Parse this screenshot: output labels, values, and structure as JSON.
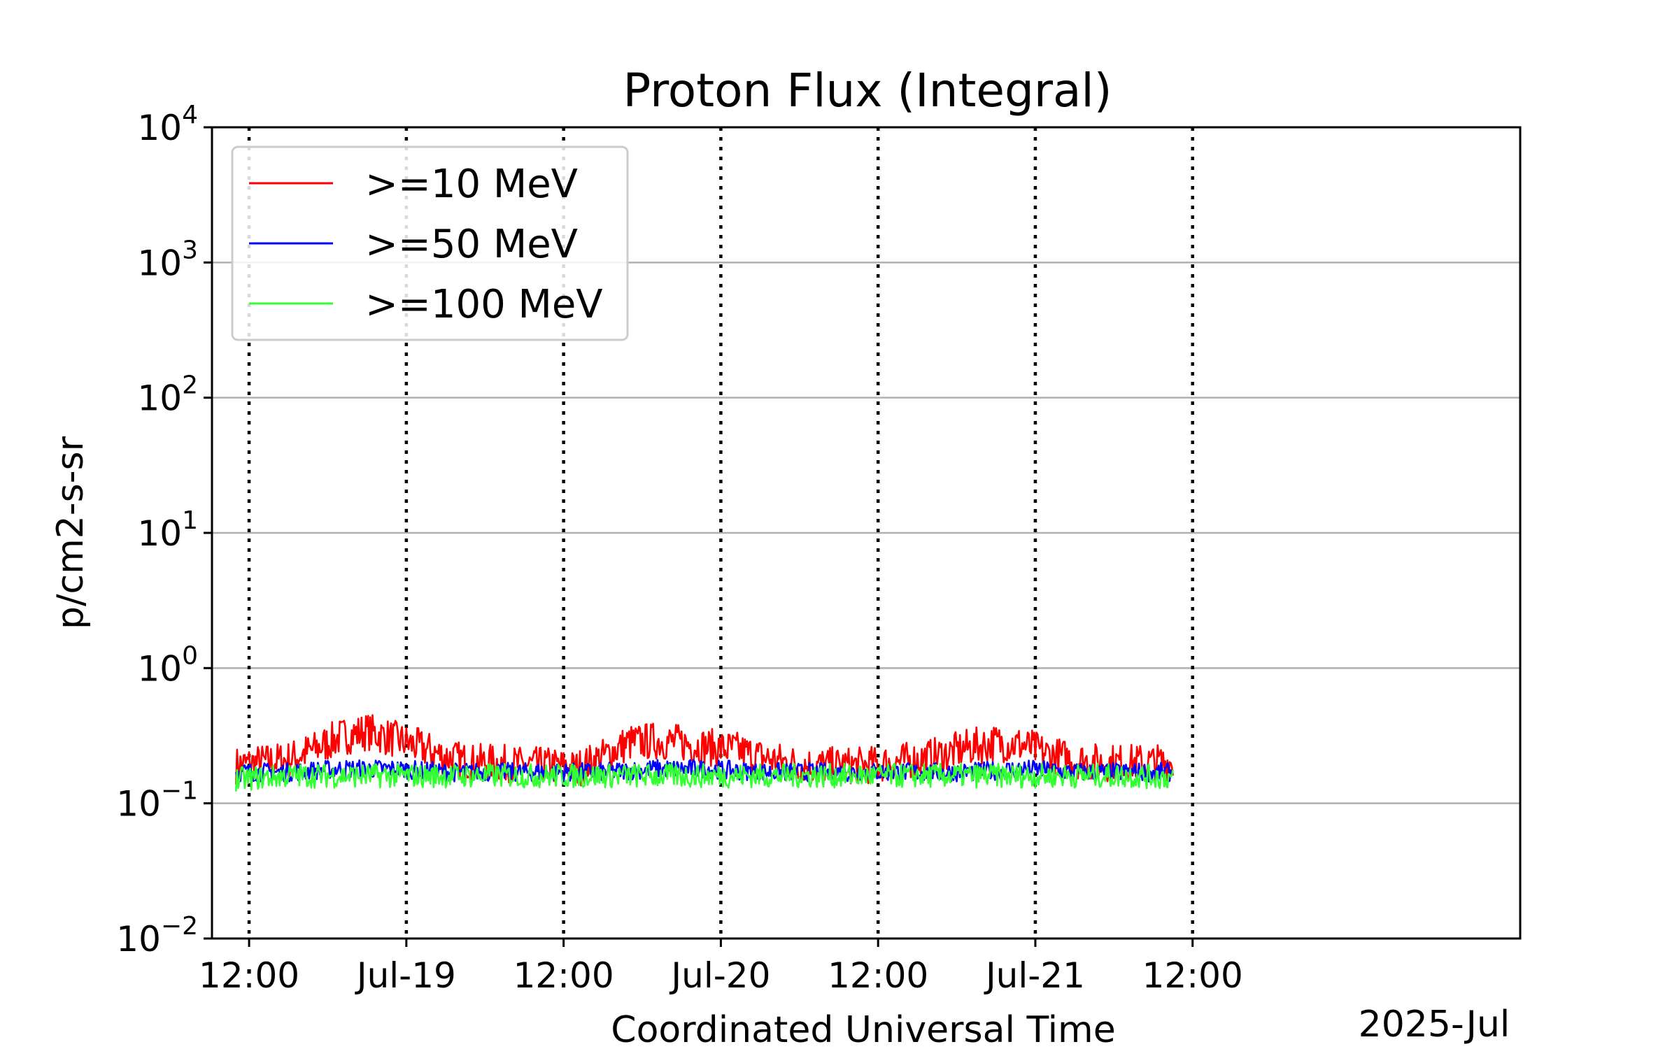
{
  "chart_data": {
    "type": "line",
    "title": "Proton Flux (Integral)",
    "xlabel": "Coordinated Universal Time",
    "ylabel": "p/cm2-s-sr",
    "x_offset_label": "2025-Jul",
    "yscale": "log",
    "ylim": [
      0.01,
      10000
    ],
    "xlim": [
      "2025-07-18 09:10",
      "2025-07-22 13:00"
    ],
    "grid": "horizontal solid gray at decades; vertical dotted black at x ticks",
    "legend_position": "top-left",
    "x_ticks": [
      {
        "t": "2025-07-18 12:00",
        "label": "12:00"
      },
      {
        "t": "2025-07-19 00:00",
        "label": "Jul-19"
      },
      {
        "t": "2025-07-19 12:00",
        "label": "12:00"
      },
      {
        "t": "2025-07-20 00:00",
        "label": "Jul-20"
      },
      {
        "t": "2025-07-20 12:00",
        "label": "12:00"
      },
      {
        "t": "2025-07-21 00:00",
        "label": "Jul-21"
      },
      {
        "t": "2025-07-21 12:00",
        "label": "12:00"
      }
    ],
    "y_ticks": [
      {
        "value": 0.01,
        "base": "10",
        "exp": "−2"
      },
      {
        "value": 0.1,
        "base": "10",
        "exp": "−1"
      },
      {
        "value": 1,
        "base": "10",
        "exp": "0"
      },
      {
        "value": 10,
        "base": "10",
        "exp": "1"
      },
      {
        "value": 100,
        "base": "10",
        "exp": "2"
      },
      {
        "value": 1000,
        "base": "10",
        "exp": "3"
      },
      {
        "value": 10000,
        "base": "10",
        "exp": "4"
      }
    ],
    "series": [
      {
        "name": ">=10 MeV",
        "color": "#ff0000",
        "points": [
          [
            "2025-07-18 11:00",
            0.19
          ],
          [
            "2025-07-18 13:00",
            0.2
          ],
          [
            "2025-07-18 15:00",
            0.21
          ],
          [
            "2025-07-18 17:00",
            0.25
          ],
          [
            "2025-07-18 19:00",
            0.31
          ],
          [
            "2025-07-18 21:00",
            0.34
          ],
          [
            "2025-07-18 23:00",
            0.3
          ],
          [
            "2025-07-19 01:00",
            0.26
          ],
          [
            "2025-07-19 03:00",
            0.22
          ],
          [
            "2025-07-19 05:00",
            0.2
          ],
          [
            "2025-07-19 07:00",
            0.2
          ],
          [
            "2025-07-19 09:00",
            0.19
          ],
          [
            "2025-07-19 11:00",
            0.19
          ],
          [
            "2025-07-19 13:00",
            0.18
          ],
          [
            "2025-07-19 15:00",
            0.22
          ],
          [
            "2025-07-19 17:00",
            0.28
          ],
          [
            "2025-07-19 19:00",
            0.29
          ],
          [
            "2025-07-19 21:00",
            0.28
          ],
          [
            "2025-07-19 23:00",
            0.26
          ],
          [
            "2025-07-20 01:00",
            0.25
          ],
          [
            "2025-07-20 03:00",
            0.22
          ],
          [
            "2025-07-20 05:00",
            0.2
          ],
          [
            "2025-07-20 07:00",
            0.19
          ],
          [
            "2025-07-20 09:00",
            0.19
          ],
          [
            "2025-07-20 11:00",
            0.19
          ],
          [
            "2025-07-20 13:00",
            0.2
          ],
          [
            "2025-07-20 15:00",
            0.21
          ],
          [
            "2025-07-20 17:00",
            0.23
          ],
          [
            "2025-07-20 19:00",
            0.26
          ],
          [
            "2025-07-20 21:00",
            0.28
          ],
          [
            "2025-07-20 23:00",
            0.27
          ],
          [
            "2025-07-21 01:00",
            0.23
          ],
          [
            "2025-07-21 03:00",
            0.21
          ],
          [
            "2025-07-21 05:00",
            0.2
          ],
          [
            "2025-07-21 07:00",
            0.2
          ],
          [
            "2025-07-21 09:00",
            0.2
          ],
          [
            "2025-07-21 10:30",
            0.2
          ]
        ]
      },
      {
        "name": ">=50 MeV",
        "color": "#0000ff",
        "points": [
          [
            "2025-07-18 11:00",
            0.17
          ],
          [
            "2025-07-18 15:00",
            0.17
          ],
          [
            "2025-07-18 19:00",
            0.18
          ],
          [
            "2025-07-18 23:00",
            0.18
          ],
          [
            "2025-07-19 03:00",
            0.17
          ],
          [
            "2025-07-19 07:00",
            0.17
          ],
          [
            "2025-07-19 11:00",
            0.17
          ],
          [
            "2025-07-19 15:00",
            0.17
          ],
          [
            "2025-07-19 19:00",
            0.18
          ],
          [
            "2025-07-19 23:00",
            0.18
          ],
          [
            "2025-07-20 03:00",
            0.17
          ],
          [
            "2025-07-20 07:00",
            0.17
          ],
          [
            "2025-07-20 11:00",
            0.17
          ],
          [
            "2025-07-20 15:00",
            0.17
          ],
          [
            "2025-07-20 19:00",
            0.17
          ],
          [
            "2025-07-20 23:00",
            0.18
          ],
          [
            "2025-07-21 03:00",
            0.17
          ],
          [
            "2025-07-21 07:00",
            0.17
          ],
          [
            "2025-07-21 10:30",
            0.17
          ]
        ]
      },
      {
        "name": ">=100 MeV",
        "color": "#33ff33",
        "points": [
          [
            "2025-07-18 11:00",
            0.15
          ],
          [
            "2025-07-18 15:00",
            0.16
          ],
          [
            "2025-07-18 19:00",
            0.16
          ],
          [
            "2025-07-18 23:00",
            0.16
          ],
          [
            "2025-07-19 03:00",
            0.16
          ],
          [
            "2025-07-19 07:00",
            0.16
          ],
          [
            "2025-07-19 11:00",
            0.16
          ],
          [
            "2025-07-19 15:00",
            0.16
          ],
          [
            "2025-07-19 19:00",
            0.16
          ],
          [
            "2025-07-19 23:00",
            0.16
          ],
          [
            "2025-07-20 03:00",
            0.16
          ],
          [
            "2025-07-20 07:00",
            0.16
          ],
          [
            "2025-07-20 11:00",
            0.16
          ],
          [
            "2025-07-20 15:00",
            0.16
          ],
          [
            "2025-07-20 19:00",
            0.16
          ],
          [
            "2025-07-20 23:00",
            0.16
          ],
          [
            "2025-07-21 03:00",
            0.16
          ],
          [
            "2025-07-21 07:00",
            0.16
          ],
          [
            "2025-07-21 10:30",
            0.155
          ]
        ]
      }
    ]
  }
}
